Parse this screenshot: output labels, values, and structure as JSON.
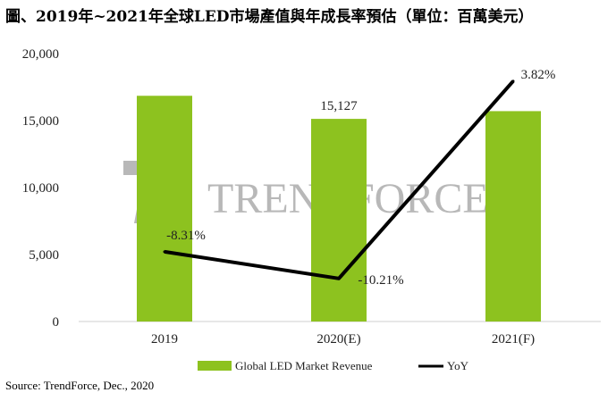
{
  "title": "圖、2019年~2021年全球LED市場產值與年成長率預估（單位：百萬美元）",
  "source": "Source: TrendForce,  Dec., 2020",
  "watermark": "TRENDFORCE",
  "colors": {
    "bar": "#8dc21f",
    "line": "#000000",
    "watermark": "#b8b8b8"
  },
  "chart_data": {
    "type": "bar",
    "categories": [
      "2019",
      "2020(E)",
      "2021(F)"
    ],
    "y_axis": {
      "ylim": [
        0,
        20000
      ],
      "ticks": [
        "0",
        "5,000",
        "10,000",
        "15,000",
        "20,000"
      ],
      "tick_values": [
        0,
        5000,
        10000,
        15000,
        20000
      ]
    },
    "series": [
      {
        "name": "Global LED Market Revenue",
        "type": "bar",
        "values": [
          16850,
          15127,
          15705
        ],
        "data_labels": [
          "",
          "15,127",
          ""
        ]
      },
      {
        "name": "YoY",
        "type": "line",
        "values": [
          -8.31,
          -10.21,
          3.82
        ],
        "data_labels": [
          "-8.31%",
          "-10.21%",
          "3.82%"
        ]
      }
    ],
    "legend_position": "bottom",
    "grid": false
  }
}
